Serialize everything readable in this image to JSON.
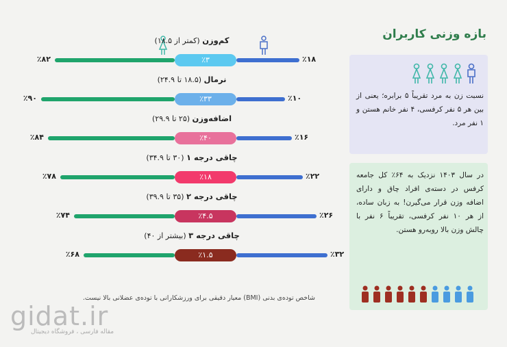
{
  "title": "بازه وزنی کاربران",
  "ratio_box": {
    "text": "نسبت زن به مرد تقریباً ۵ برابره؛ یعنی از بین هر ۵ نفر کرفسی، ۴ نفر خانم هستن و ۱ نفر مرد."
  },
  "overweight_box": {
    "text": "در سال ۱۴۰۳ نزدیک به ۶۴٪ کل جامعه کرفس در دسته‌ی افراد چاق و دارای اضافه وزن قرار می‌گیرن! به زبان ساده، از هر ۱۰ نفر کرفسی، تقریباً ۶ نفر با چالش وزن بالا روبه‌رو هستن."
  },
  "rows": [
    {
      "name": "کم‌وزن",
      "range": "(کمتر از ۱۸.۵)",
      "share": "٪۳",
      "women": "٪۸۲",
      "men": "٪۱۸",
      "color": "#5cc9f0"
    },
    {
      "name": "نرمال",
      "range": "(۱۸.۵ تا ۲۴.۹)",
      "share": "٪۳۳",
      "women": "٪۹۰",
      "men": "٪۱۰",
      "color": "#6cb0ea"
    },
    {
      "name": "اضافه‌وزن",
      "range": "(۲۵ تا ۲۹.۹)",
      "share": "٪۴۰",
      "women": "٪۸۴",
      "men": "٪۱۶",
      "color": "#e8719b"
    },
    {
      "name": "چاقی درجه ۱",
      "range": "(۳۰ تا ۳۴.۹)",
      "share": "٪۱۸",
      "women": "٪۷۸",
      "men": "٪۲۲",
      "color": "#f23a6c"
    },
    {
      "name": "چاقی درجه ۲",
      "range": "(۳۵ تا ۳۹.۹)",
      "share": "٪۴.۵",
      "women": "٪۷۴",
      "men": "٪۲۶",
      "color": "#c8355f"
    },
    {
      "name": "چاقی درجه ۳",
      "range": "(بیشتر از ۴۰)",
      "share": "٪۱.۵",
      "women": "٪۶۸",
      "men": "٪۳۲",
      "color": "#8a2b1f"
    }
  ],
  "footnote": "شاخص توده‌ی بدنی (BMI) معیار دقیقی برای ورزشکارانی با توده‌ی عضلانی بالا نیست.",
  "watermark": {
    "brand": "gidat.ir",
    "tagline": "مقاله فارسی ، فروشگاه دیجیتال"
  }
}
